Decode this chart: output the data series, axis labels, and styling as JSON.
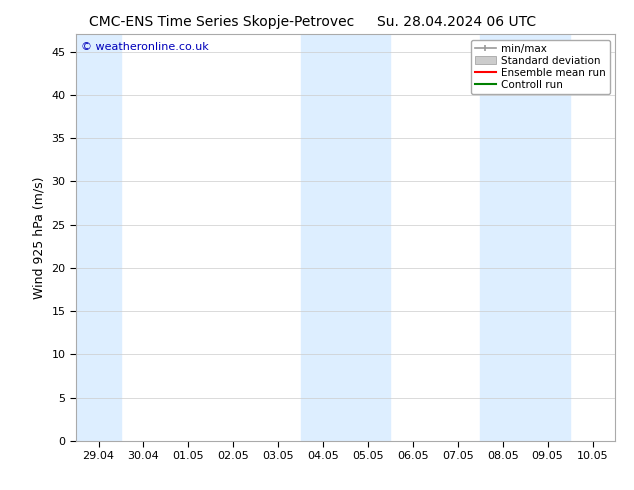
{
  "title_left": "CMC-ENS Time Series Skopje-Petrovec",
  "title_right": "Su. 28.04.2024 06 UTC",
  "ylabel": "Wind 925 hPa (m/s)",
  "watermark": "© weatheronline.co.uk",
  "ylim": [
    0,
    47
  ],
  "yticks": [
    0,
    5,
    10,
    15,
    20,
    25,
    30,
    35,
    40,
    45
  ],
  "xtick_labels": [
    "29.04",
    "30.04",
    "01.05",
    "02.05",
    "03.05",
    "04.05",
    "05.05",
    "06.05",
    "07.05",
    "08.05",
    "09.05",
    "10.05"
  ],
  "background_color": "#ffffff",
  "plot_bg_color": "#ffffff",
  "shaded_band_color": "#ddeeff",
  "shaded_ranges": [
    [
      0,
      1
    ],
    [
      5,
      7
    ],
    [
      9,
      11
    ]
  ],
  "legend_labels": [
    "min/max",
    "Standard deviation",
    "Ensemble mean run",
    "Controll run"
  ],
  "legend_minmax_color": "#999999",
  "legend_std_color": "#cccccc",
  "legend_ens_color": "#ff0000",
  "legend_ctrl_color": "#008000",
  "title_fontsize": 10,
  "axis_label_fontsize": 9,
  "tick_fontsize": 8,
  "watermark_color": "#0000bb",
  "watermark_fontsize": 8,
  "legend_fontsize": 7.5
}
